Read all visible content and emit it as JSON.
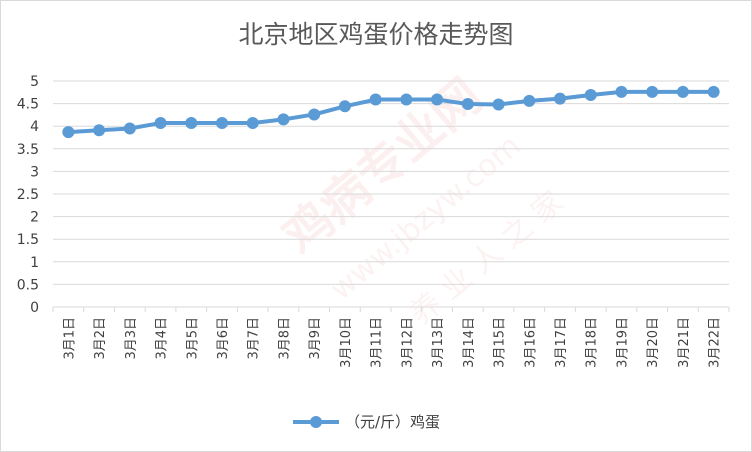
{
  "chart_data": {
    "type": "line",
    "title": "北京地区鸡蛋价格走势图",
    "categories": [
      "3月1日",
      "3月2日",
      "3月3日",
      "3月4日",
      "3月5日",
      "3月6日",
      "3月7日",
      "3月8日",
      "3月9日",
      "3月10日",
      "3月11日",
      "3月12日",
      "3月13日",
      "3月14日",
      "3月15日",
      "3月16日",
      "3月17日",
      "3月18日",
      "3月19日",
      "3月20日",
      "3月21日",
      "3月22日"
    ],
    "series": [
      {
        "name": "（元/斤）鸡蛋",
        "values": [
          3.87,
          3.91,
          3.95,
          4.07,
          4.07,
          4.07,
          4.07,
          4.15,
          4.26,
          4.44,
          4.59,
          4.59,
          4.59,
          4.49,
          4.48,
          4.56,
          4.61,
          4.69,
          4.76,
          4.76,
          4.76,
          4.76
        ],
        "color": "#5b9bd5"
      }
    ],
    "ylim": [
      0,
      5
    ],
    "yticks": [
      "0",
      "0.5",
      "1",
      "1.5",
      "2",
      "2.5",
      "3",
      "3.5",
      "4",
      "4.5",
      "5"
    ],
    "grid": true,
    "legend": "bottom"
  },
  "watermark": {
    "text": "鸡病专业网",
    "url": "www.jbzyw.com",
    "slogan": "养 业 人 之 家"
  }
}
